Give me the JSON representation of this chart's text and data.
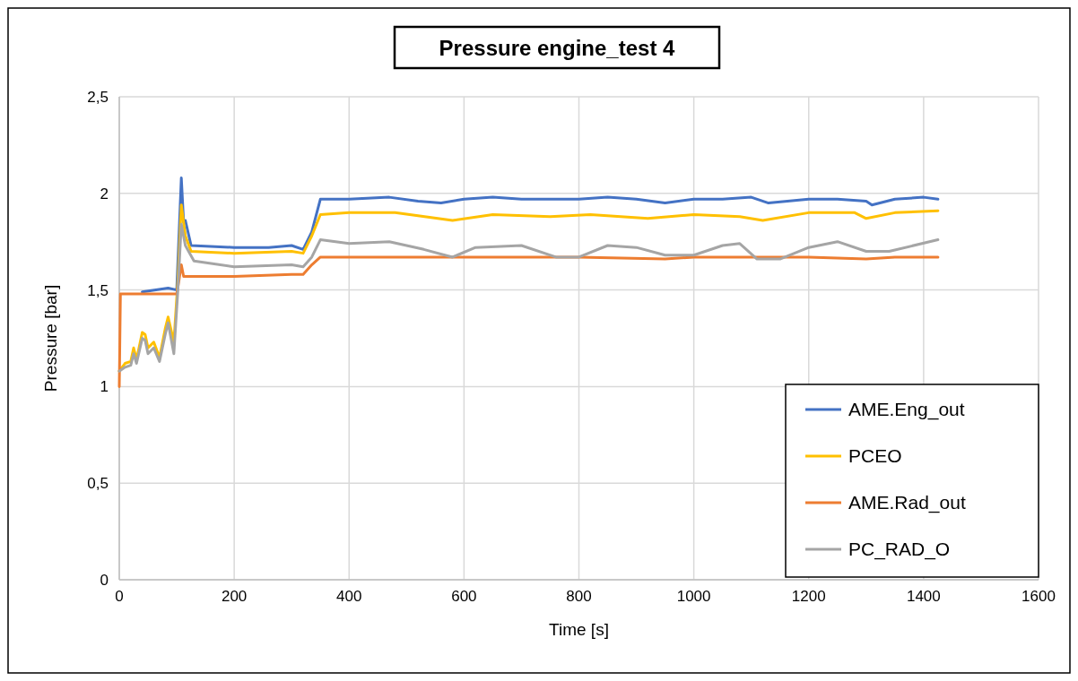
{
  "chart_data": {
    "type": "line",
    "title": "Pressure engine_test 4",
    "xlabel": "Time [s]",
    "ylabel": "Pressure [bar]",
    "xlim": [
      0,
      1600
    ],
    "xticks": [
      0,
      200,
      400,
      600,
      800,
      1000,
      1200,
      1400,
      1600
    ],
    "ylim": [
      0,
      2.5
    ],
    "yticks": [
      0,
      {
        "value": 0.5,
        "label": "0,5"
      },
      1,
      {
        "value": 1.5,
        "label": "1,5"
      },
      2,
      {
        "value": 2.5,
        "label": "2,5"
      }
    ],
    "grid": true,
    "legend": "bottom right",
    "marker": "none",
    "line_style": "solid",
    "series": [
      {
        "name": "AME.Eng_out",
        "color": "#4472c4",
        "x": [
          40,
          85,
          100,
          108,
          112,
          115,
          125,
          200,
          260,
          300,
          320,
          335,
          350,
          400,
          470,
          520,
          560,
          600,
          650,
          700,
          800,
          850,
          900,
          950,
          1000,
          1050,
          1100,
          1130,
          1200,
          1250,
          1300,
          1310,
          1350,
          1400,
          1425
        ],
        "values": [
          1.49,
          1.51,
          1.5,
          2.08,
          1.85,
          1.86,
          1.73,
          1.72,
          1.72,
          1.73,
          1.71,
          1.8,
          1.97,
          1.97,
          1.98,
          1.96,
          1.95,
          1.97,
          1.98,
          1.97,
          1.97,
          1.98,
          1.97,
          1.95,
          1.97,
          1.97,
          1.98,
          1.95,
          1.97,
          1.97,
          1.96,
          1.94,
          1.97,
          1.98,
          1.97
        ]
      },
      {
        "name": "PCEO",
        "color": "#ffc000",
        "x": [
          0,
          10,
          20,
          25,
          30,
          40,
          45,
          50,
          60,
          70,
          80,
          85,
          95,
          102,
          108,
          115,
          125,
          200,
          300,
          320,
          335,
          350,
          400,
          480,
          580,
          650,
          750,
          820,
          920,
          1000,
          1080,
          1120,
          1200,
          1280,
          1300,
          1350,
          1425
        ],
        "values": [
          1.08,
          1.12,
          1.13,
          1.2,
          1.14,
          1.28,
          1.27,
          1.2,
          1.23,
          1.15,
          1.3,
          1.36,
          1.23,
          1.55,
          1.94,
          1.78,
          1.7,
          1.69,
          1.7,
          1.69,
          1.78,
          1.89,
          1.9,
          1.9,
          1.86,
          1.89,
          1.88,
          1.89,
          1.87,
          1.89,
          1.88,
          1.86,
          1.9,
          1.9,
          1.87,
          1.9,
          1.91
        ]
      },
      {
        "name": "AME.Rad_out",
        "color": "#ed7d31",
        "x": [
          0,
          2,
          100,
          104,
          108,
          112,
          120,
          200,
          300,
          320,
          335,
          350,
          400,
          600,
          800,
          950,
          1000,
          1200,
          1300,
          1350,
          1425
        ],
        "values": [
          1.0,
          1.48,
          1.48,
          1.55,
          1.63,
          1.57,
          1.57,
          1.57,
          1.58,
          1.58,
          1.63,
          1.67,
          1.67,
          1.67,
          1.67,
          1.66,
          1.67,
          1.67,
          1.66,
          1.67,
          1.67
        ]
      },
      {
        "name": "PC_RAD_O",
        "color": "#a5a5a5",
        "x": [
          0,
          10,
          20,
          25,
          30,
          40,
          45,
          50,
          60,
          70,
          80,
          85,
          95,
          102,
          108,
          115,
          130,
          200,
          300,
          320,
          335,
          350,
          400,
          470,
          530,
          580,
          620,
          700,
          760,
          800,
          850,
          900,
          950,
          1000,
          1050,
          1080,
          1110,
          1150,
          1200,
          1250,
          1300,
          1340,
          1425
        ],
        "values": [
          1.08,
          1.1,
          1.11,
          1.17,
          1.12,
          1.25,
          1.24,
          1.17,
          1.2,
          1.13,
          1.27,
          1.33,
          1.17,
          1.5,
          1.84,
          1.73,
          1.65,
          1.62,
          1.63,
          1.62,
          1.67,
          1.76,
          1.74,
          1.75,
          1.71,
          1.67,
          1.72,
          1.73,
          1.67,
          1.67,
          1.73,
          1.72,
          1.68,
          1.68,
          1.73,
          1.74,
          1.66,
          1.66,
          1.72,
          1.75,
          1.7,
          1.7,
          1.76
        ]
      }
    ]
  }
}
